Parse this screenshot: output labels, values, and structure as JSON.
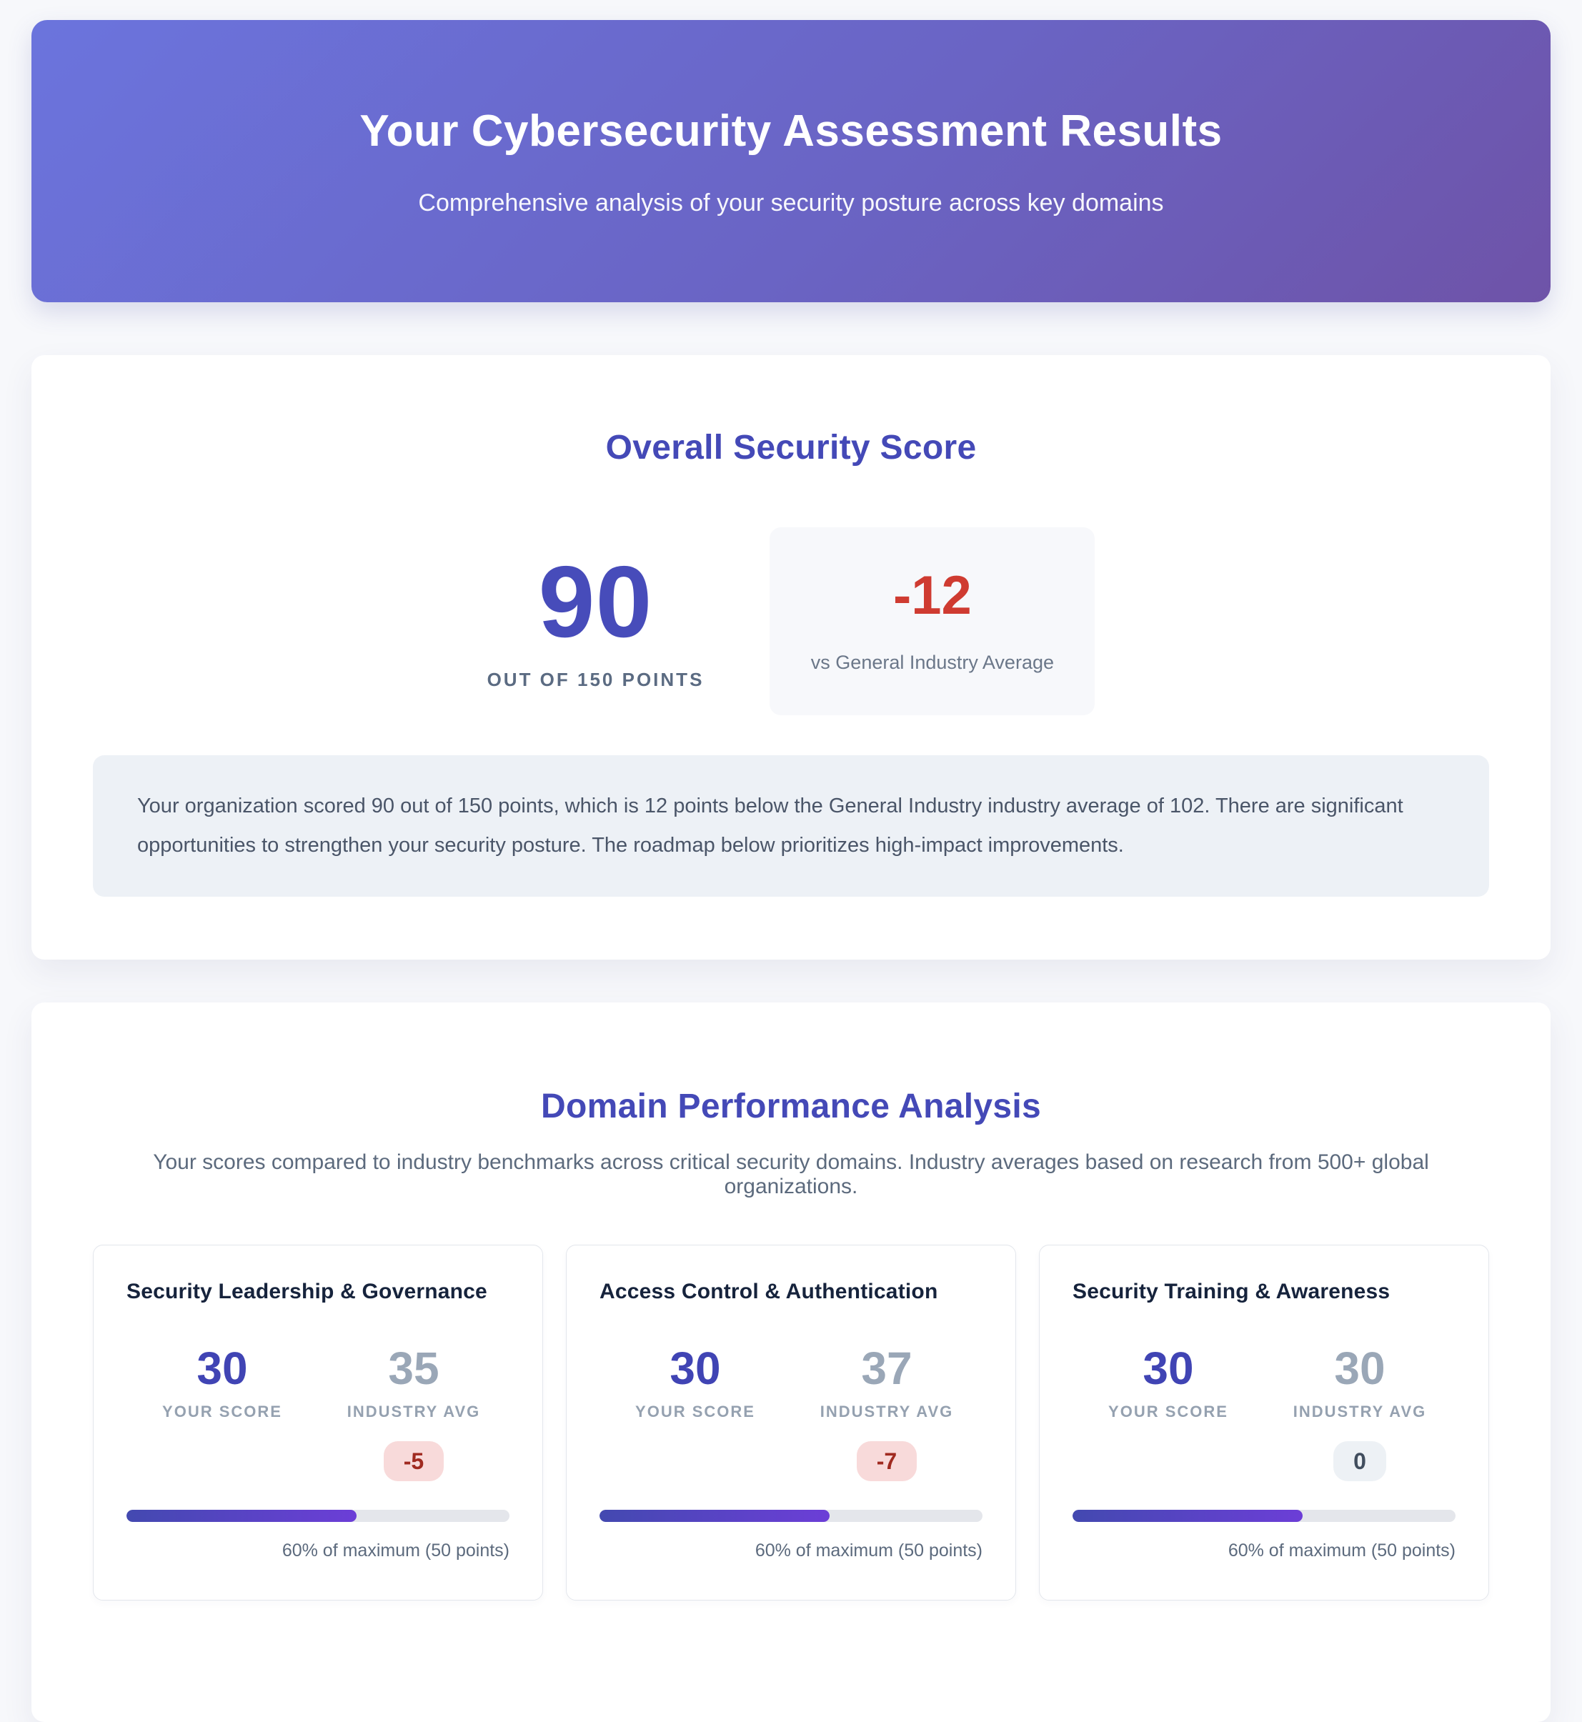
{
  "header": {
    "title": "Your Cybersecurity Assessment Results",
    "subtitle": "Comprehensive analysis of your security posture across key domains"
  },
  "overall": {
    "heading": "Overall Security Score",
    "score": "90",
    "score_caption": "OUT OF 150 POINTS",
    "delta": "-12",
    "delta_caption": "vs General Industry Average",
    "summary": "Your organization scored 90 out of 150 points, which is 12 points below the General Industry industry average of 102. There are significant opportunities to strengthen your security posture. The roadmap below prioritizes high-impact improvements."
  },
  "domains": {
    "heading": "Domain Performance Analysis",
    "subheading": "Your scores compared to industry benchmarks across critical security domains. Industry averages based on research from 500+ global organizations.",
    "cards": [
      {
        "title": "Security Leadership & Governance",
        "your_score": "30",
        "your_score_label": "YOUR SCORE",
        "industry_avg": "35",
        "industry_avg_label": "INDUSTRY AVG",
        "delta": "-5",
        "delta_type": "negative",
        "progress_pct": 60,
        "caption": "60% of maximum (50 points)"
      },
      {
        "title": "Access Control & Authentication",
        "your_score": "30",
        "your_score_label": "YOUR SCORE",
        "industry_avg": "37",
        "industry_avg_label": "INDUSTRY AVG",
        "delta": "-7",
        "delta_type": "negative",
        "progress_pct": 60,
        "caption": "60% of maximum (50 points)"
      },
      {
        "title": "Security Training & Awareness",
        "your_score": "30",
        "your_score_label": "YOUR SCORE",
        "industry_avg": "30",
        "industry_avg_label": "INDUSTRY AVG",
        "delta": "0",
        "delta_type": "neutral",
        "progress_pct": 60,
        "caption": "60% of maximum (50 points)"
      }
    ]
  },
  "chart_data": {
    "type": "bar",
    "title": "Domain Performance Analysis",
    "categories": [
      "Security Leadership & Governance",
      "Access Control & Authentication",
      "Security Training & Awareness"
    ],
    "series": [
      {
        "name": "Your Score",
        "values": [
          30,
          30,
          30
        ]
      },
      {
        "name": "Industry Avg",
        "values": [
          35,
          37,
          30
        ]
      }
    ],
    "deltas": [
      -5,
      -7,
      0
    ],
    "max_per_domain": 50,
    "percent_of_max": [
      60,
      60,
      60
    ],
    "overall_score": 90,
    "overall_max": 150,
    "overall_delta_vs_industry": -12,
    "industry_average_overall": 102
  },
  "colors": {
    "banner_gradient_start": "#6b74dd",
    "banner_gradient_end": "#6e53a8",
    "heading_indigo": "#4449b7",
    "score_indigo": "#474cba",
    "delta_red": "#cf3b31",
    "badge_negative_bg": "#f8dada",
    "badge_negative_text": "#a02a20",
    "badge_neutral_bg": "#edf1f5",
    "badge_neutral_text": "#414e5e",
    "progress_gradient_start": "#4349b0",
    "progress_gradient_end": "#6c3ed7",
    "summary_bg": "#edf1f6",
    "page_bg": "#f7f8fb"
  }
}
